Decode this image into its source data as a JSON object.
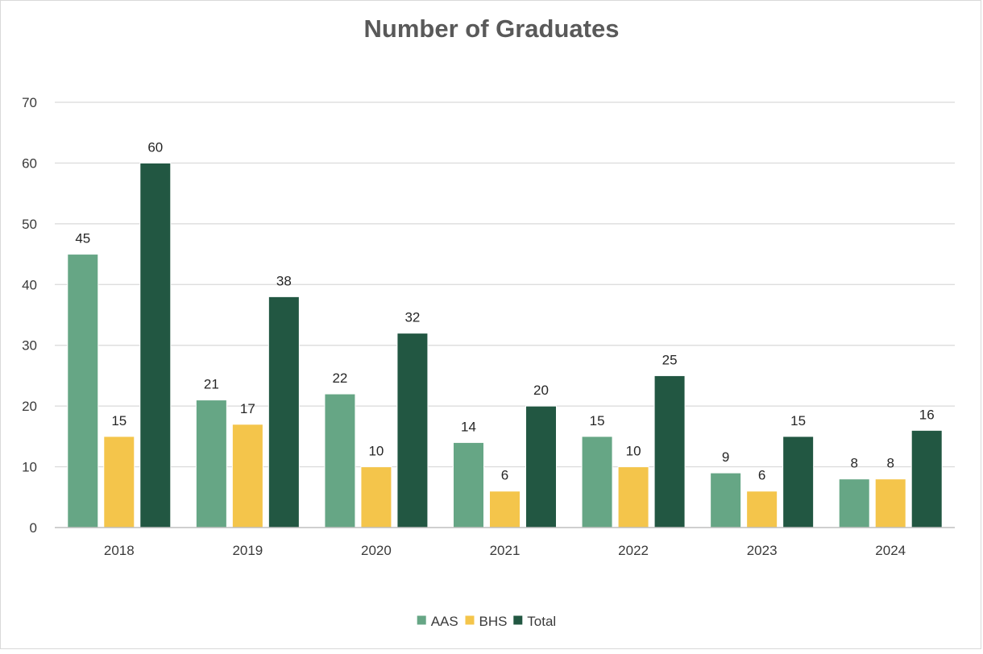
{
  "chart_data": {
    "type": "bar",
    "title": "Number of Graduates",
    "xlabel": "",
    "ylabel": "",
    "categories": [
      "2018",
      "2019",
      "2020",
      "2021",
      "2022",
      "2023",
      "2024"
    ],
    "series": [
      {
        "name": "AAS",
        "color": "#66a685",
        "values": [
          45,
          21,
          22,
          14,
          15,
          9,
          8
        ]
      },
      {
        "name": "BHS",
        "color": "#f4c54b",
        "values": [
          15,
          17,
          10,
          6,
          10,
          6,
          8
        ]
      },
      {
        "name": "Total",
        "color": "#225742",
        "values": [
          60,
          38,
          32,
          20,
          25,
          15,
          16
        ]
      }
    ],
    "ylim": [
      0,
      70
    ],
    "yticks": [
      0,
      10,
      20,
      30,
      40,
      50,
      60,
      70
    ],
    "grid": true,
    "legend_position": "bottom",
    "data_labels": true
  }
}
